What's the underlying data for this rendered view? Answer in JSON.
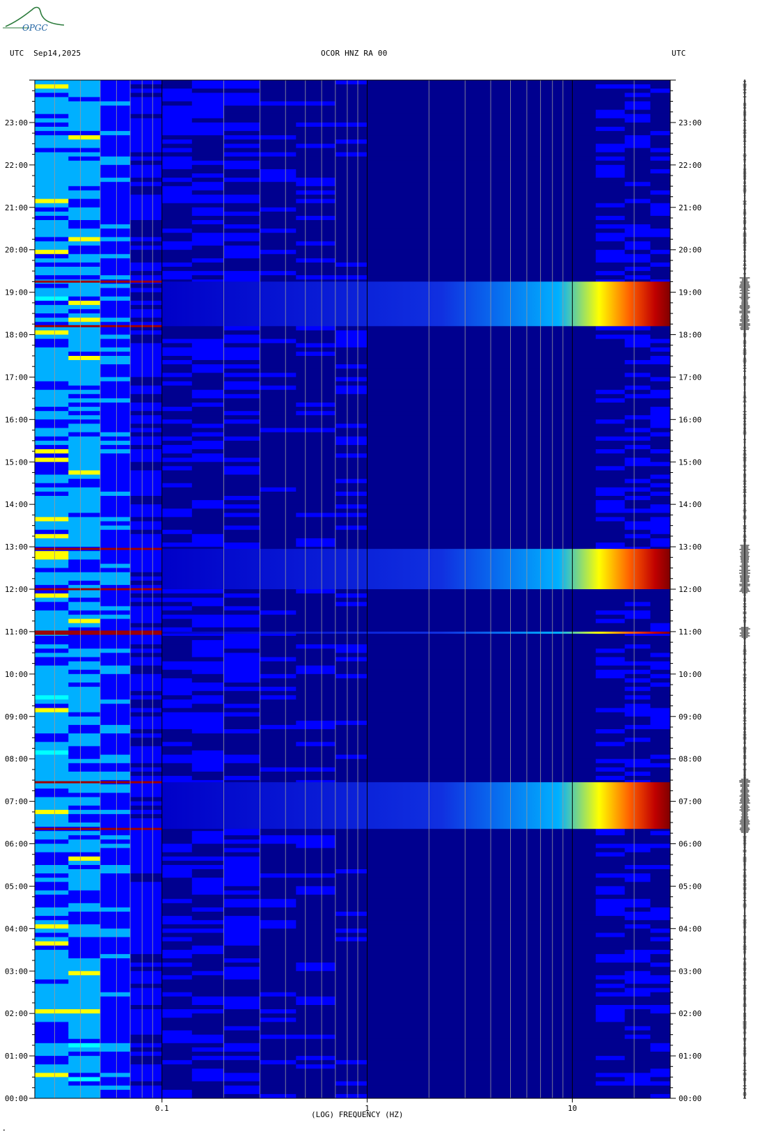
{
  "header": {
    "left": "UTC  Sep14,2025",
    "center": "OCOR HNZ RA 00",
    "right": "UTC"
  },
  "logo": {
    "text": "OPGC",
    "color": "#2a7a3a"
  },
  "chart_data": {
    "type": "heatmap",
    "title": "OCOR HNZ RA 00",
    "xlabel": "(LOG) FREQUENCY (HZ)",
    "ylabel": "",
    "x_scale": "log",
    "xlim": [
      0.024,
      30
    ],
    "x_ticks": [
      {
        "value": 0.1,
        "label": "0.1"
      },
      {
        "value": 1,
        "label": "1"
      },
      {
        "value": 10,
        "label": "10"
      }
    ],
    "ylim": [
      0,
      24
    ],
    "y_ticks_left": [
      "00:00",
      "01:00",
      "02:00",
      "03:00",
      "04:00",
      "05:00",
      "06:00",
      "07:00",
      "08:00",
      "09:00",
      "10:00",
      "11:00",
      "12:00",
      "13:00",
      "14:00",
      "15:00",
      "16:00",
      "17:00",
      "18:00",
      "19:00",
      "20:00",
      "21:00",
      "22:00",
      "23:00"
    ],
    "y_ticks_right": [
      "00:00",
      "01:00",
      "02:00",
      "03:00",
      "04:00",
      "05:00",
      "06:00",
      "07:00",
      "08:00",
      "09:00",
      "10:00",
      "11:00",
      "12:00",
      "13:00",
      "14:00",
      "15:00",
      "16:00",
      "17:00",
      "18:00",
      "19:00",
      "20:00",
      "21:00",
      "22:00",
      "23:00"
    ],
    "colormap": [
      "#00008f",
      "#0000ff",
      "#00b0ff",
      "#00ffff",
      "#ffff00",
      "#ff8000",
      "#ff0000",
      "#800000"
    ],
    "events": [
      {
        "start_hour": 6.35,
        "end_hour": 7.45,
        "max_freq_hz": 30
      },
      {
        "start_hour": 12.0,
        "end_hour": 12.95,
        "max_freq_hz": 30
      },
      {
        "start_hour": 18.2,
        "end_hour": 19.25,
        "max_freq_hz": 30
      },
      {
        "start_hour": 10.95,
        "end_hour": 11.0,
        "max_freq_hz": 30
      }
    ],
    "grid": true
  }
}
